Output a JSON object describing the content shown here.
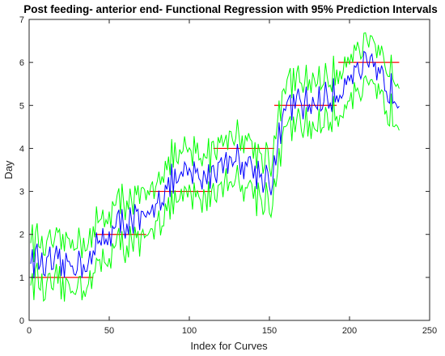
{
  "chart_data": {
    "type": "line",
    "title": "Post feeding- anterior end- Functional Regression with 95% Prediction Intervals",
    "xlabel": "Index for Curves",
    "ylabel": "Day",
    "xlim": [
      0,
      250
    ],
    "ylim": [
      0,
      7
    ],
    "xticks": [
      0,
      50,
      100,
      150,
      200,
      250
    ],
    "yticks": [
      0,
      1,
      2,
      3,
      4,
      5,
      6,
      7
    ],
    "grid": false,
    "colors": {
      "observed": "#ff0000",
      "fitted": "#0000ff",
      "interval": "#00ff00"
    },
    "observed_steps": [
      {
        "day": 1,
        "x_start": 1,
        "x_end": 40
      },
      {
        "day": 2,
        "x_start": 41,
        "x_end": 73
      },
      {
        "day": 3,
        "x_start": 75,
        "x_end": 114
      },
      {
        "day": 4,
        "x_start": 115,
        "x_end": 153
      },
      {
        "day": 5,
        "x_start": 153,
        "x_end": 192
      },
      {
        "day": 6,
        "x_start": 193,
        "x_end": 231
      }
    ],
    "fitted_anchors": {
      "x": [
        1,
        10,
        20,
        30,
        40,
        45,
        55,
        65,
        73,
        80,
        90,
        100,
        110,
        115,
        125,
        135,
        145,
        152,
        160,
        170,
        180,
        192,
        200,
        210,
        220,
        231
      ],
      "y": [
        1.5,
        1.3,
        1.25,
        1.35,
        1.45,
        1.9,
        2.2,
        2.4,
        2.2,
        2.9,
        3.2,
        3.4,
        3.3,
        3.5,
        3.8,
        3.7,
        3.4,
        3.3,
        5.0,
        5.0,
        5.1,
        5.2,
        5.8,
        5.9,
        5.6,
        5.2
      ]
    },
    "interval_half_width": 0.5
  }
}
